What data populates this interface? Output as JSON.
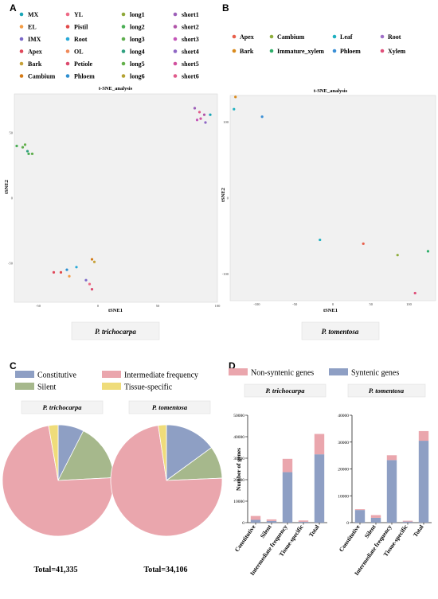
{
  "panels": {
    "A": "A",
    "B": "B",
    "C": "C",
    "D": "D"
  },
  "panelA": {
    "legend": [
      {
        "label": "MX",
        "color": "#1aa6b7"
      },
      {
        "label": "EL",
        "color": "#f39c45"
      },
      {
        "label": "IMX",
        "color": "#7b68c8"
      },
      {
        "label": "Apex",
        "color": "#e0495b"
      },
      {
        "label": "Bark",
        "color": "#c7a23a"
      },
      {
        "label": "Cambium",
        "color": "#d47a16"
      },
      {
        "label": "YL",
        "color": "#ee6a86"
      },
      {
        "label": "Pistil",
        "color": "#e24a4a"
      },
      {
        "label": "Root",
        "color": "#28a9d8"
      },
      {
        "label": "OL",
        "color": "#f08a5a"
      },
      {
        "label": "Petiole",
        "color": "#dc4a6e"
      },
      {
        "label": "Phloem",
        "color": "#2e8fd0"
      },
      {
        "label": "long1",
        "color": "#8fa83a"
      },
      {
        "label": "long2",
        "color": "#4aae54"
      },
      {
        "label": "long3",
        "color": "#5fae4e"
      },
      {
        "label": "long4",
        "color": "#30a080"
      },
      {
        "label": "long5",
        "color": "#64b04a"
      },
      {
        "label": "long6",
        "color": "#b4a232"
      },
      {
        "label": "short1",
        "color": "#9c5fb8"
      },
      {
        "label": "short2",
        "color": "#b054a8"
      },
      {
        "label": "short3",
        "color": "#c456b8"
      },
      {
        "label": "short4",
        "color": "#8e66c4"
      },
      {
        "label": "short5",
        "color": "#d1509e"
      },
      {
        "label": "short6",
        "color": "#e05a8a"
      }
    ],
    "chart_title": "t-SNE_analysis",
    "xlabel": "tSNE1",
    "ylabel": "tSNE2",
    "species": "P. trichocarpa",
    "xticks": [
      "-50",
      "0",
      "50",
      "100"
    ],
    "yticks": [
      "50",
      "0",
      "-50"
    ]
  },
  "panelB": {
    "legend": [
      {
        "label": "Apex",
        "color": "#e8604c"
      },
      {
        "label": "Bark",
        "color": "#d98a1c"
      },
      {
        "label": "Cambium",
        "color": "#8fae3c"
      },
      {
        "label": "Immature_xylem",
        "color": "#2fae6a"
      },
      {
        "label": "Leaf",
        "color": "#1fb0c0"
      },
      {
        "label": "Phloem",
        "color": "#3a8fd6"
      },
      {
        "label": "Root",
        "color": "#a070c8"
      },
      {
        "label": "Xylem",
        "color": "#e0507a"
      }
    ],
    "chart_title": "t-SNE_analysis",
    "xlabel": "tSNE1",
    "ylabel": "tSNE2",
    "species": "P. tomentosa",
    "xticks": [
      "-100",
      "-50",
      "0",
      "50",
      "100"
    ],
    "yticks": [
      "100",
      "0",
      "-100"
    ]
  },
  "panelC": {
    "legend": [
      {
        "label": "Constitutive",
        "color": "#8e9fc4"
      },
      {
        "label": "Intermediate frequency",
        "color": "#eaa6ad"
      },
      {
        "label": "Silent",
        "color": "#a6b88c"
      },
      {
        "label": "Tissue-specific",
        "color": "#efdc7a"
      }
    ],
    "pies": [
      {
        "species": "P. trichocarpa",
        "total_label": "Total=41,335"
      },
      {
        "species": "P. tomentosa",
        "total_label": "Total=34,106"
      }
    ]
  },
  "panelD": {
    "legend": [
      {
        "label": "Non-syntenic genes",
        "color": "#eaa6ad"
      },
      {
        "label": "Syntenic genes",
        "color": "#8e9fc4"
      }
    ],
    "ylabel": "Number of genes",
    "bar_charts": [
      {
        "species": "P. trichocarpa",
        "yticks": [
          "0",
          "10000",
          "20000",
          "30000",
          "40000",
          "50000"
        ]
      },
      {
        "species": "P. tomentosa",
        "yticks": [
          "0",
          "10000",
          "20000",
          "30000",
          "40000"
        ]
      }
    ]
  },
  "chart_data": [
    {
      "type": "scatter",
      "title": "t-SNE_analysis",
      "xlabel": "tSNE1",
      "ylabel": "tSNE2",
      "xlim": [
        -70,
        100
      ],
      "ylim": [
        -80,
        80
      ],
      "points": [
        {
          "x": -68,
          "y": 40,
          "color": "#4aae54"
        },
        {
          "x": -63,
          "y": 39,
          "color": "#5fae4e"
        },
        {
          "x": -61,
          "y": 41,
          "color": "#64b04a"
        },
        {
          "x": -59,
          "y": 36,
          "color": "#30a080"
        },
        {
          "x": -58,
          "y": 34,
          "color": "#4aae54"
        },
        {
          "x": -55,
          "y": 34,
          "color": "#5fae4e"
        },
        {
          "x": 81,
          "y": 69,
          "color": "#9c5fb8"
        },
        {
          "x": 85,
          "y": 66,
          "color": "#e05a8a"
        },
        {
          "x": 89,
          "y": 64,
          "color": "#b054a8"
        },
        {
          "x": 94,
          "y": 64,
          "color": "#1aa6b7"
        },
        {
          "x": 83,
          "y": 60,
          "color": "#c456b8"
        },
        {
          "x": 86,
          "y": 61,
          "color": "#d1509e"
        },
        {
          "x": 90,
          "y": 58,
          "color": "#8e66c4"
        },
        {
          "x": -5,
          "y": -47,
          "color": "#d47a16"
        },
        {
          "x": -3,
          "y": -49,
          "color": "#c7a23a"
        },
        {
          "x": -18,
          "y": -53,
          "color": "#28a9d8"
        },
        {
          "x": -26,
          "y": -55,
          "color": "#2e8fd0"
        },
        {
          "x": -31,
          "y": -57,
          "color": "#e24a4a"
        },
        {
          "x": -37,
          "y": -57,
          "color": "#e0495b"
        },
        {
          "x": -24,
          "y": -60,
          "color": "#f39c45"
        },
        {
          "x": -10,
          "y": -63,
          "color": "#7b68c8"
        },
        {
          "x": -7,
          "y": -66,
          "color": "#ee6a86"
        },
        {
          "x": -5,
          "y": -70,
          "color": "#dc4a6e"
        }
      ]
    },
    {
      "type": "scatter",
      "title": "t-SNE_analysis",
      "xlabel": "tSNE1",
      "ylabel": "tSNE2",
      "xlim": [
        -135,
        135
      ],
      "ylim": [
        -135,
        135
      ],
      "points": [
        {
          "x": -128,
          "y": 133,
          "color": "#d98a1c"
        },
        {
          "x": -130,
          "y": 117,
          "color": "#1fb0c0"
        },
        {
          "x": -93,
          "y": 107,
          "color": "#3a8fd6"
        },
        {
          "x": -17,
          "y": -55,
          "color": "#1fb0c0"
        },
        {
          "x": 40,
          "y": -60,
          "color": "#e8604c"
        },
        {
          "x": 85,
          "y": -75,
          "color": "#8fae3c"
        },
        {
          "x": 125,
          "y": -70,
          "color": "#2fae6a"
        },
        {
          "x": 108,
          "y": -125,
          "color": "#e0507a"
        }
      ]
    },
    {
      "type": "pie",
      "title": "P. trichocarpa",
      "categories": [
        "Constitutive",
        "Silent",
        "Intermediate frequency",
        "Tissue-specific"
      ],
      "values": [
        3100,
        6900,
        30200,
        1135
      ]
    },
    {
      "type": "pie",
      "title": "P. tomentosa",
      "categories": [
        "Constitutive",
        "Silent",
        "Intermediate frequency",
        "Tissue-specific"
      ],
      "values": [
        5100,
        3200,
        25000,
        806
      ]
    },
    {
      "type": "bar",
      "title": "P. trichocarpa",
      "ylabel": "Number of genes",
      "categories": [
        "Constitutive",
        "Silent",
        "Intermediate frequency",
        "Tissue-specific",
        "Total"
      ],
      "ylim": [
        0,
        50000
      ],
      "series": [
        {
          "name": "Syntenic genes",
          "values": [
            1300,
            800,
            23500,
            400,
            31800
          ],
          "color": "#8e9fc4"
        },
        {
          "name": "Non-syntenic genes",
          "values": [
            1800,
            700,
            6200,
            600,
            9500
          ],
          "color": "#eaa6ad"
        }
      ]
    },
    {
      "type": "bar",
      "title": "P. tomentosa",
      "ylabel": "Number of genes",
      "categories": [
        "Constitutive",
        "Silent",
        "Intermediate frequency",
        "Tissue-specific",
        "Total"
      ],
      "ylim": [
        0,
        40000
      ],
      "series": [
        {
          "name": "Syntenic genes",
          "values": [
            4700,
            1800,
            23300,
            400,
            30500
          ],
          "color": "#8e9fc4"
        },
        {
          "name": "Non-syntenic genes",
          "values": [
            300,
            1000,
            1800,
            300,
            3600
          ],
          "color": "#eaa6ad"
        }
      ]
    }
  ]
}
